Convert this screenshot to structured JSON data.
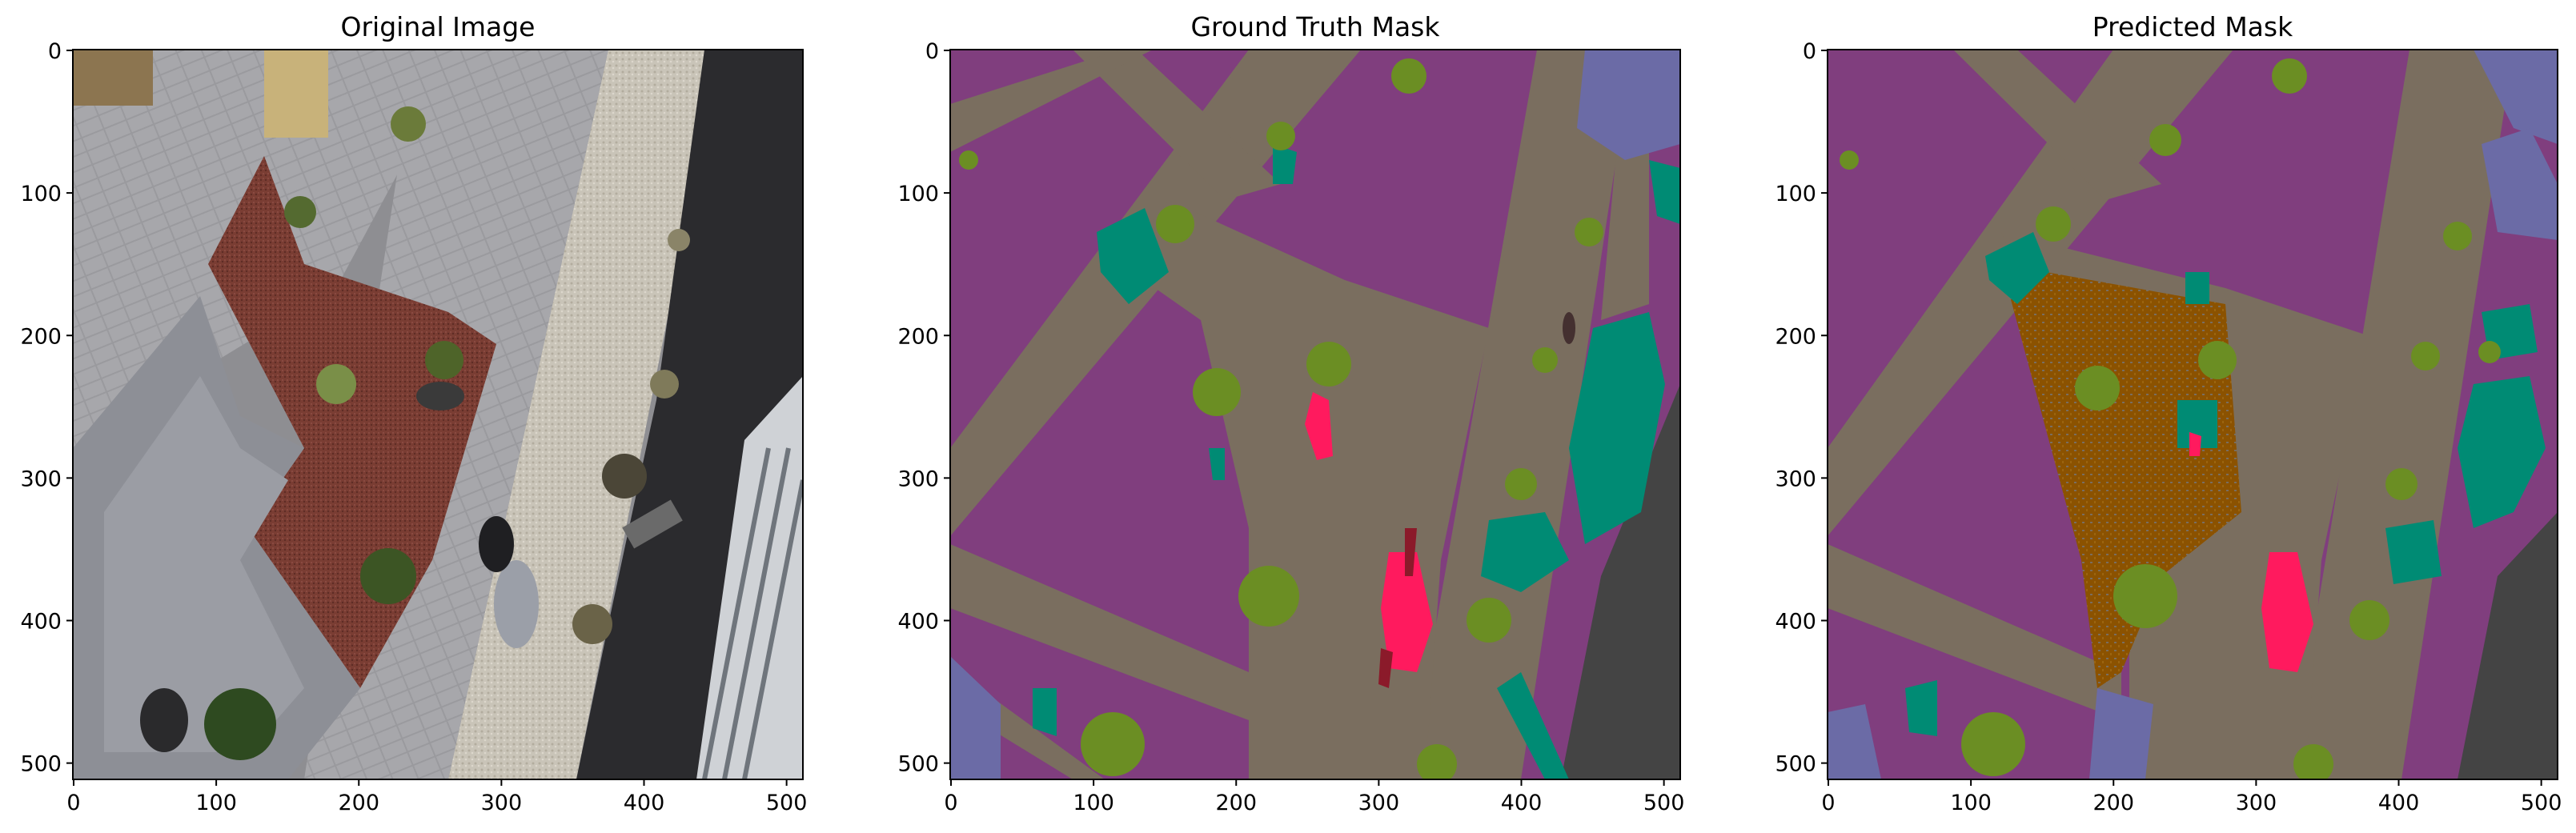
{
  "panels": [
    {
      "title": "Original Image",
      "x_ticks": [
        "0",
        "100",
        "200",
        "300",
        "400",
        "500"
      ],
      "y_ticks": [
        "0",
        "100",
        "200",
        "300",
        "400",
        "500"
      ]
    },
    {
      "title": "Ground Truth Mask",
      "x_ticks": [
        "0",
        "100",
        "200",
        "300",
        "400",
        "500"
      ],
      "y_ticks": [
        "0",
        "100",
        "200",
        "300",
        "400",
        "500"
      ]
    },
    {
      "title": "Predicted Mask",
      "x_ticks": [
        "0",
        "100",
        "200",
        "300",
        "400",
        "500"
      ],
      "y_ticks": [
        "0",
        "100",
        "200",
        "300",
        "400",
        "500"
      ]
    }
  ],
  "colors": {
    "mask_background": "#803e7e",
    "paved_area": "#7a6e5f",
    "vegetation": "#6b8e23",
    "water_teal": "#008b74",
    "person": "#ff1a5e",
    "obstacle_gray": "#444444",
    "slate": "#6b6ba6",
    "dirt_brown": "#8b5200",
    "dark_red": "#8b1a2a"
  }
}
